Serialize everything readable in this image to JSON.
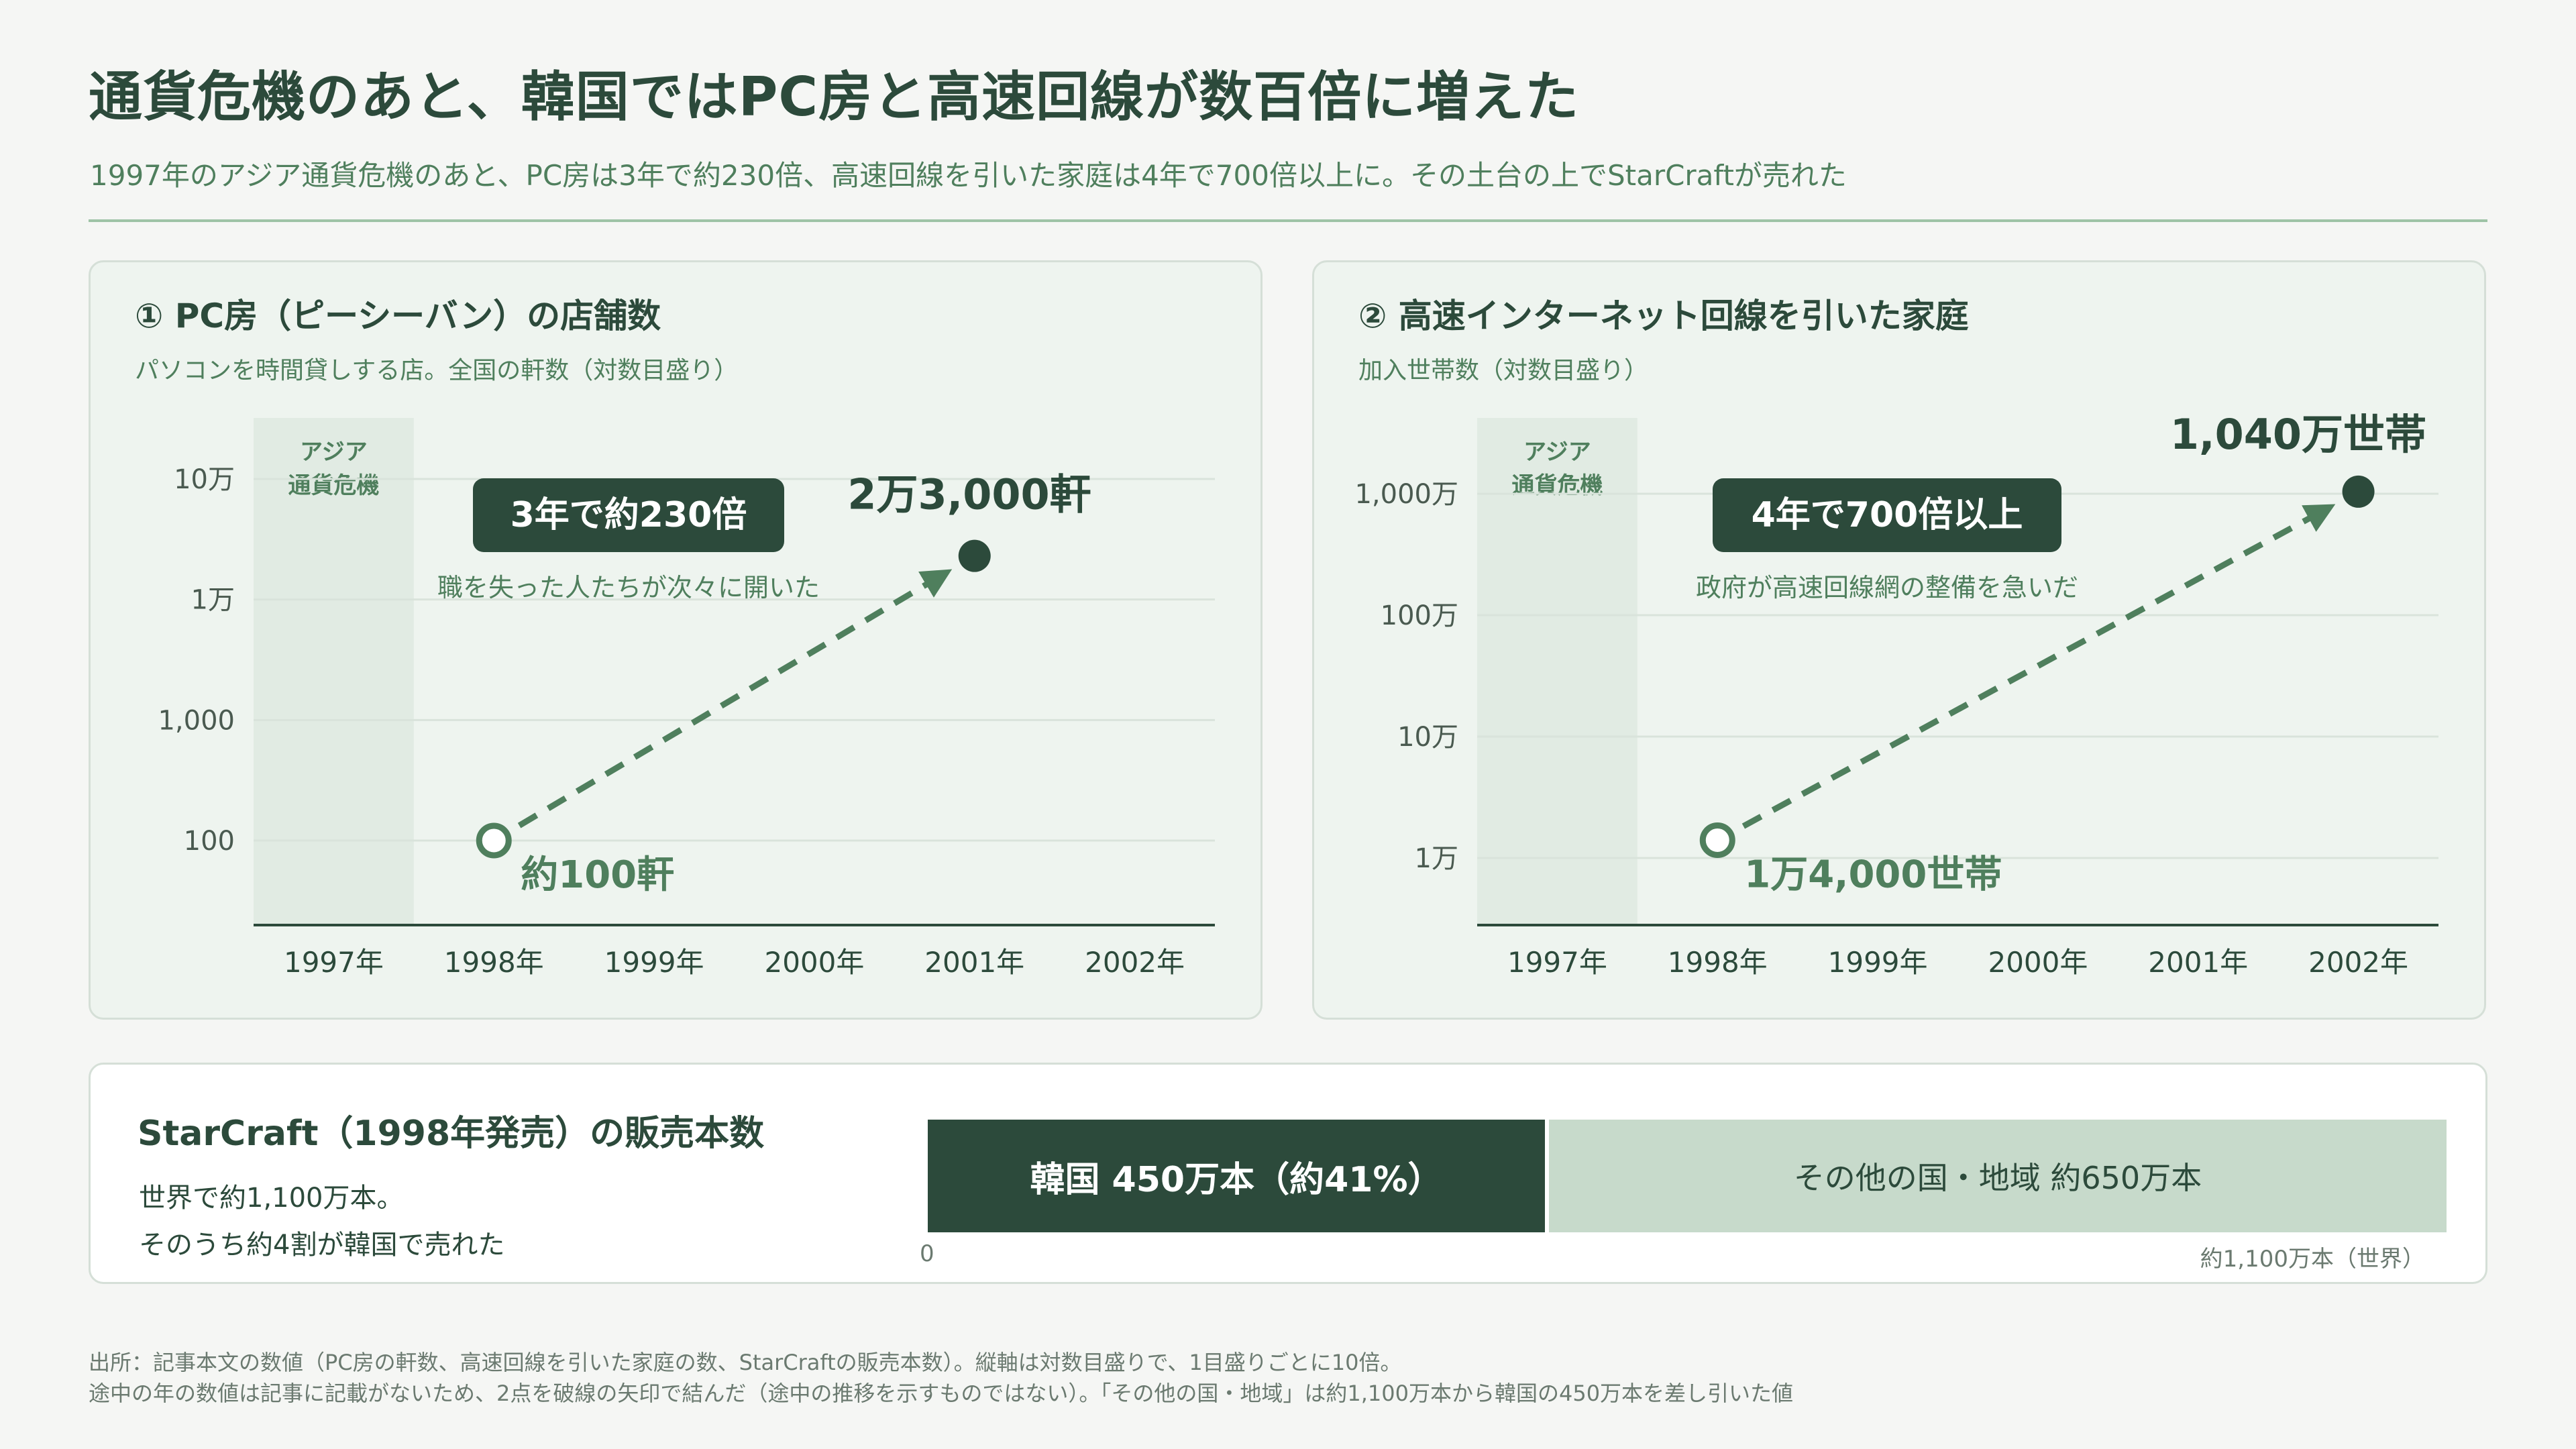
{
  "header": {
    "title": "通貨危機のあと、韓国ではPC房と高速回線が数百倍に増えた",
    "subtitle": "1997年のアジア通貨危機のあと、PC房は3年で約230倍、高速回線を引いた家庭は4年で700倍以上に。その土台の上でStarCraftが売れた"
  },
  "colors": {
    "dark_green": "#2c4a3b",
    "mid_green": "#4f7f5d",
    "light_green": "#c7dacb",
    "panel_bg": "#eef4ef",
    "crisis_band": "#e1ebe3"
  },
  "panels": [
    {
      "title": "① PC房（ピーシーバン）の店舗数",
      "subtitle": "パソコンを時間貸しする店。全国の軒数（対数目盛り）",
      "crisis_label": [
        "アジア",
        "通貨危機"
      ],
      "badge": "3年で約230倍",
      "note": "職を失った人たちが次々に開いた",
      "start_label": "約100軒",
      "end_label": "2万3,000軒"
    },
    {
      "title": "② 高速インターネット回線を引いた家庭",
      "subtitle": "加入世帯数（対数目盛り）",
      "crisis_label": [
        "アジア",
        "通貨危機"
      ],
      "badge": "4年で700倍以上",
      "note": "政府が高速回線網の整備を急いだ",
      "start_label": "1万4,000世帯",
      "end_label": "1,040万世帯"
    }
  ],
  "chart_data": [
    {
      "type": "line",
      "title": "① PC房（ピーシーバン）の店舗数",
      "y_scale": "log",
      "ylim": [
        100,
        100000
      ],
      "y_ticks": [
        100,
        1000,
        10000,
        100000
      ],
      "y_tick_labels": [
        "100",
        "1,000",
        "1万",
        "10万"
      ],
      "x_tick_labels": [
        "1997年",
        "1998年",
        "1999年",
        "2000年",
        "2001年",
        "2002年"
      ],
      "x_range": [
        1997,
        2002
      ],
      "crisis_band": [
        1997,
        1997
      ],
      "series": [
        {
          "x": [
            1998,
            2001
          ],
          "y": [
            100,
            23000
          ]
        }
      ],
      "grid": true
    },
    {
      "type": "line",
      "title": "② 高速インターネット回線を引いた家庭",
      "y_scale": "log",
      "ylim": [
        10000,
        10000000
      ],
      "y_ticks": [
        10000,
        100000,
        1000000,
        10000000
      ],
      "y_tick_labels": [
        "1万",
        "10万",
        "100万",
        "1,000万"
      ],
      "x_tick_labels": [
        "1997年",
        "1998年",
        "1999年",
        "2000年",
        "2001年",
        "2002年"
      ],
      "x_range": [
        1997,
        2002
      ],
      "crisis_band": [
        1997,
        1997
      ],
      "series": [
        {
          "x": [
            1998,
            2002
          ],
          "y": [
            14000,
            10400000
          ]
        }
      ],
      "grid": true
    },
    {
      "type": "bar",
      "title": "StarCraft（1998年発売）の販売本数",
      "categories": [
        "韓国",
        "その他の国・地域"
      ],
      "values": [
        450,
        650
      ],
      "total": 1100,
      "unit": "万本"
    }
  ],
  "sales": {
    "title": "StarCraft（1998年発売）の販売本数",
    "line1": "世界で約1,100万本。",
    "line2": "そのうち約4割が韓国で売れた",
    "korea_label": "韓国 450万本（約41%）",
    "other_label": "その他の国・地域 約650万本",
    "axis_zero": "0",
    "axis_total": "約1,100万本（世界）"
  },
  "footnotes": [
    "出所：記事本文の数値（PC房の軒数、高速回線を引いた家庭の数、StarCraftの販売本数）。縦軸は対数目盛りで、1目盛りごとに10倍。",
    "途中の年の数値は記事に記載がないため、2点を破線の矢印で結んだ（途中の推移を示すものではない）。「その他の国・地域」は約1,100万本から韓国の450万本を差し引いた値"
  ]
}
